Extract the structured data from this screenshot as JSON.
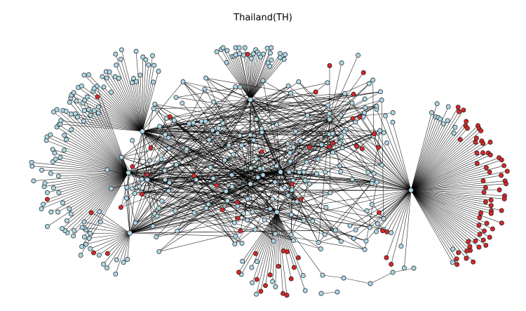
{
  "title": "Thailand(TH)",
  "colors": {
    "node_default": "#add8e6",
    "node_highlight": "#d62728",
    "node_stroke": "#1a1a1a",
    "edge": "#000000",
    "background": "#ffffff"
  },
  "graph": {
    "layout": "spring-force",
    "node_count_estimate": 480,
    "red_node_count_estimate": 110,
    "hubs": [
      "hub-left",
      "hub-upper-left",
      "hub-right",
      "hub-top",
      "hub-center",
      "hub-lower-center",
      "hub-lower-left"
    ]
  }
}
